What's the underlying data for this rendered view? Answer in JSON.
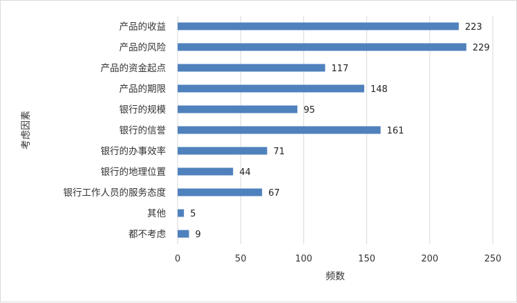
{
  "chart_data": {
    "type": "bar",
    "orientation": "horizontal",
    "categories": [
      "产品的收益",
      "产品的风险",
      "产品的资金起点",
      "产品的期限",
      "银行的规模",
      "银行的信誉",
      "银行的办事效率",
      "银行的地理位置",
      "银行工作人员的服务态度",
      "其他",
      "都不考虑"
    ],
    "values": [
      223,
      229,
      117,
      148,
      95,
      161,
      71,
      44,
      67,
      5,
      9
    ],
    "data_labels": [
      "223",
      "229",
      "117",
      "148",
      "95",
      "161",
      "71",
      "44",
      "67",
      "5",
      "9"
    ],
    "xlabel": "频数",
    "ylabel": "考虑因素",
    "xlim": [
      0,
      250
    ],
    "xticks": [
      0,
      50,
      100,
      150,
      200,
      250
    ],
    "xtick_labels": [
      "0",
      "50",
      "100",
      "150",
      "200",
      "250"
    ],
    "grid": "vertical",
    "legend": "none",
    "bar_color": "#4f81bd",
    "grid_color": "#d9d9d9"
  }
}
